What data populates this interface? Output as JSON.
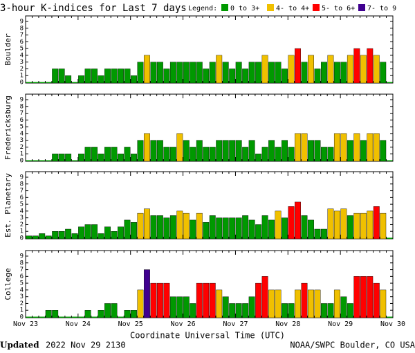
{
  "chart_data": {
    "type": "bar",
    "title": "3-hour K-indices for Last 7 days",
    "legend_title": "Legend:",
    "legend": [
      {
        "name": "0 to 3+",
        "color": "#009900"
      },
      {
        "name": "4- to 4+",
        "color": "#f0c000"
      },
      {
        "name": "5- to 6+",
        "color": "#ff0000"
      },
      {
        "name": "7- to 9",
        "color": "#400090"
      }
    ],
    "x_labels": [
      "Nov 23",
      "Nov 24",
      "Nov 25",
      "Nov 26",
      "Nov 27",
      "Nov 28",
      "Nov 29",
      "Nov 30"
    ],
    "xlabel": "Coordinate Universal Time (UTC)",
    "ylim": [
      0,
      9
    ],
    "yticks": [
      0,
      1,
      2,
      3,
      4,
      5,
      6,
      7,
      8,
      9
    ],
    "panels": [
      {
        "name": "Boulder",
        "values": [
          0,
          0,
          0,
          0,
          2,
          2,
          1,
          0,
          1,
          2,
          2,
          1,
          2,
          2,
          2,
          2,
          1,
          3,
          4,
          3,
          3,
          2,
          3,
          3,
          3,
          3,
          3,
          2,
          3,
          4,
          3,
          2,
          3,
          2,
          3,
          3,
          4,
          3,
          3,
          2,
          4,
          5,
          3,
          4,
          2,
          3,
          4,
          3,
          3,
          4,
          5,
          4,
          5,
          4,
          3,
          0
        ],
        "colors": [
          "#009900",
          "#009900",
          "#009900",
          "#009900",
          "#009900",
          "#009900",
          "#009900",
          "#009900",
          "#009900",
          "#009900",
          "#009900",
          "#009900",
          "#009900",
          "#009900",
          "#009900",
          "#009900",
          "#009900",
          "#009900",
          "#f0c000",
          "#009900",
          "#009900",
          "#009900",
          "#009900",
          "#009900",
          "#009900",
          "#009900",
          "#009900",
          "#009900",
          "#009900",
          "#f0c000",
          "#009900",
          "#009900",
          "#009900",
          "#009900",
          "#009900",
          "#009900",
          "#f0c000",
          "#009900",
          "#009900",
          "#009900",
          "#f0c000",
          "#ff0000",
          "#009900",
          "#f0c000",
          "#009900",
          "#009900",
          "#f0c000",
          "#009900",
          "#009900",
          "#f0c000",
          "#ff0000",
          "#f0c000",
          "#ff0000",
          "#f0c000",
          "#009900",
          "#009900"
        ]
      },
      {
        "name": "Fredericksburg",
        "values": [
          0,
          0,
          0,
          0,
          1,
          1,
          1,
          0,
          1,
          2,
          2,
          1,
          2,
          2,
          1,
          2,
          1,
          3,
          4,
          3,
          3,
          2,
          2,
          4,
          3,
          2,
          3,
          2,
          2,
          3,
          3,
          3,
          3,
          2,
          3,
          1,
          2,
          3,
          2,
          3,
          2,
          4,
          4,
          3,
          3,
          2,
          2,
          4,
          4,
          3,
          4,
          3,
          4,
          4,
          3,
          0
        ],
        "colors": [
          "#009900",
          "#009900",
          "#009900",
          "#009900",
          "#009900",
          "#009900",
          "#009900",
          "#009900",
          "#009900",
          "#009900",
          "#009900",
          "#009900",
          "#009900",
          "#009900",
          "#009900",
          "#009900",
          "#009900",
          "#009900",
          "#f0c000",
          "#009900",
          "#009900",
          "#009900",
          "#009900",
          "#f0c000",
          "#009900",
          "#009900",
          "#009900",
          "#009900",
          "#009900",
          "#009900",
          "#009900",
          "#009900",
          "#009900",
          "#009900",
          "#009900",
          "#009900",
          "#009900",
          "#009900",
          "#009900",
          "#009900",
          "#009900",
          "#f0c000",
          "#f0c000",
          "#009900",
          "#009900",
          "#009900",
          "#009900",
          "#f0c000",
          "#f0c000",
          "#009900",
          "#f0c000",
          "#009900",
          "#f0c000",
          "#f0c000",
          "#009900",
          "#009900"
        ]
      },
      {
        "name": "Est. Planetary",
        "values": [
          0.33,
          0.33,
          0.67,
          0.33,
          1,
          1,
          1.33,
          0.67,
          1.67,
          2,
          2,
          0.67,
          1.67,
          1,
          1.67,
          2.67,
          2.33,
          3.67,
          4.33,
          3.33,
          3.33,
          3,
          3.33,
          4,
          3.67,
          2.67,
          3.67,
          2.33,
          3.33,
          3,
          3,
          3,
          3,
          3.33,
          2.67,
          2,
          3.33,
          2.67,
          4,
          3,
          4.67,
          5.33,
          3.33,
          2.67,
          1.33,
          1.33,
          4.33,
          4,
          4.33,
          3.33,
          3.67,
          3.67,
          4,
          4.67,
          3.67,
          0
        ],
        "colors": [
          "#009900",
          "#009900",
          "#009900",
          "#009900",
          "#009900",
          "#009900",
          "#009900",
          "#009900",
          "#009900",
          "#009900",
          "#009900",
          "#009900",
          "#009900",
          "#009900",
          "#009900",
          "#009900",
          "#009900",
          "#f0c000",
          "#f0c000",
          "#009900",
          "#009900",
          "#009900",
          "#009900",
          "#f0c000",
          "#f0c000",
          "#009900",
          "#f0c000",
          "#009900",
          "#009900",
          "#009900",
          "#009900",
          "#009900",
          "#009900",
          "#009900",
          "#009900",
          "#009900",
          "#009900",
          "#009900",
          "#f0c000",
          "#009900",
          "#ff0000",
          "#ff0000",
          "#009900",
          "#009900",
          "#009900",
          "#009900",
          "#f0c000",
          "#f0c000",
          "#f0c000",
          "#009900",
          "#f0c000",
          "#f0c000",
          "#f0c000",
          "#ff0000",
          "#f0c000",
          "#009900"
        ]
      },
      {
        "name": "College",
        "values": [
          0,
          0,
          0,
          1,
          1,
          0,
          0,
          0,
          0,
          1,
          0,
          1,
          2,
          2,
          0,
          1,
          1,
          4,
          7,
          5,
          5,
          5,
          3,
          3,
          3,
          2,
          5,
          5,
          5,
          4,
          3,
          2,
          2,
          2,
          3,
          5,
          6,
          4,
          4,
          2,
          2,
          4,
          5,
          4,
          4,
          2,
          2,
          4,
          3,
          2,
          6,
          6,
          6,
          5,
          4,
          0
        ],
        "colors": [
          "#009900",
          "#009900",
          "#009900",
          "#009900",
          "#009900",
          "#009900",
          "#009900",
          "#009900",
          "#009900",
          "#009900",
          "#009900",
          "#009900",
          "#009900",
          "#009900",
          "#009900",
          "#009900",
          "#009900",
          "#f0c000",
          "#400090",
          "#ff0000",
          "#ff0000",
          "#ff0000",
          "#009900",
          "#009900",
          "#009900",
          "#009900",
          "#ff0000",
          "#ff0000",
          "#ff0000",
          "#f0c000",
          "#009900",
          "#009900",
          "#009900",
          "#009900",
          "#009900",
          "#ff0000",
          "#ff0000",
          "#f0c000",
          "#f0c000",
          "#009900",
          "#009900",
          "#f0c000",
          "#ff0000",
          "#f0c000",
          "#f0c000",
          "#009900",
          "#009900",
          "#f0c000",
          "#009900",
          "#009900",
          "#ff0000",
          "#ff0000",
          "#ff0000",
          "#ff0000",
          "#f0c000",
          "#009900"
        ]
      }
    ],
    "footer_label": "Updated",
    "footer_date": "2022 Nov 29 2130",
    "credit": "NOAA/SWPC Boulder, CO USA"
  }
}
